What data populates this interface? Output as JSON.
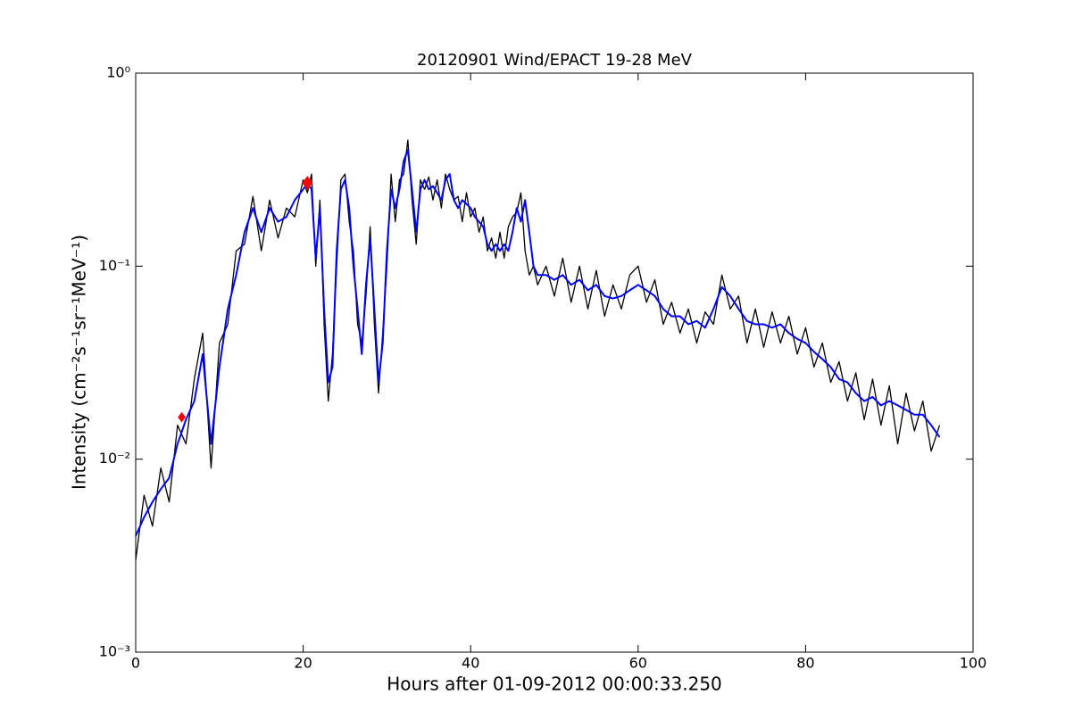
{
  "chart_data": {
    "type": "line",
    "title": "20120901 Wind/EPACT 19-28 MeV",
    "xlabel": "Hours after 01-09-2012 00:00:33.250",
    "ylabel": "Intensity (cm⁻²s⁻¹sr⁻¹MeV⁻¹)",
    "xlim": [
      0,
      100
    ],
    "xticks": [
      0,
      20,
      40,
      60,
      80,
      100
    ],
    "ylim": [
      0.001,
      1
    ],
    "yscale": "log",
    "yticks": [
      {
        "value": 0.001,
        "label": "10⁻³"
      },
      {
        "value": 0.01,
        "label": "10⁻²"
      },
      {
        "value": 0.1,
        "label": "10⁻¹"
      },
      {
        "value": 1,
        "label": "10⁰"
      }
    ],
    "x": [
      0,
      1,
      2,
      3,
      4,
      5,
      6,
      7,
      8,
      9,
      10,
      11,
      12,
      13,
      14,
      15,
      16,
      17,
      18,
      19,
      20,
      20.5,
      21,
      21.5,
      22,
      22.5,
      23,
      23.5,
      24,
      24.5,
      25,
      25.5,
      26,
      26.5,
      27,
      27.5,
      28,
      28.5,
      29,
      29.5,
      30,
      30.5,
      31,
      31.5,
      32,
      32.5,
      33,
      33.5,
      34,
      34.5,
      35,
      35.5,
      36,
      36.5,
      37,
      37.5,
      38,
      38.5,
      39,
      39.5,
      40,
      40.5,
      41,
      41.5,
      42,
      42.5,
      43,
      43.5,
      44,
      44.5,
      45,
      45.5,
      46,
      46.5,
      47,
      47.5,
      48,
      49,
      50,
      51,
      52,
      53,
      54,
      55,
      56,
      57,
      58,
      59,
      60,
      61,
      62,
      63,
      64,
      65,
      66,
      67,
      68,
      69,
      70,
      71,
      72,
      73,
      74,
      75,
      76,
      77,
      78,
      79,
      80,
      81,
      82,
      83,
      84,
      85,
      86,
      87,
      88,
      89,
      90,
      91,
      92,
      93,
      94,
      95,
      96
    ],
    "series": [
      {
        "color": "#000000",
        "values": [
          0.003,
          0.0065,
          0.0045,
          0.009,
          0.006,
          0.015,
          0.012,
          0.026,
          0.045,
          0.009,
          0.04,
          0.05,
          0.12,
          0.13,
          0.23,
          0.12,
          0.22,
          0.14,
          0.2,
          0.18,
          0.28,
          0.24,
          0.3,
          0.1,
          0.22,
          0.05,
          0.02,
          0.035,
          0.1,
          0.28,
          0.3,
          0.17,
          0.12,
          0.05,
          0.04,
          0.07,
          0.16,
          0.05,
          0.022,
          0.045,
          0.1,
          0.3,
          0.17,
          0.28,
          0.3,
          0.45,
          0.22,
          0.13,
          0.28,
          0.25,
          0.29,
          0.22,
          0.28,
          0.2,
          0.3,
          0.25,
          0.22,
          0.23,
          0.17,
          0.24,
          0.18,
          0.2,
          0.15,
          0.18,
          0.12,
          0.14,
          0.11,
          0.15,
          0.11,
          0.16,
          0.18,
          0.19,
          0.24,
          0.12,
          0.09,
          0.1,
          0.08,
          0.1,
          0.07,
          0.11,
          0.065,
          0.1,
          0.06,
          0.095,
          0.055,
          0.08,
          0.06,
          0.09,
          0.1,
          0.065,
          0.085,
          0.05,
          0.065,
          0.045,
          0.06,
          0.04,
          0.058,
          0.05,
          0.09,
          0.06,
          0.07,
          0.04,
          0.06,
          0.038,
          0.058,
          0.04,
          0.055,
          0.035,
          0.048,
          0.03,
          0.04,
          0.025,
          0.032,
          0.02,
          0.028,
          0.016,
          0.026,
          0.015,
          0.024,
          0.012,
          0.022,
          0.014,
          0.02,
          0.011,
          0.015
        ]
      },
      {
        "color": "#0000ff",
        "values": [
          0.004,
          0.005,
          0.006,
          0.007,
          0.008,
          0.012,
          0.016,
          0.02,
          0.035,
          0.012,
          0.03,
          0.06,
          0.09,
          0.15,
          0.2,
          0.15,
          0.2,
          0.17,
          0.18,
          0.22,
          0.25,
          0.27,
          0.25,
          0.11,
          0.2,
          0.06,
          0.025,
          0.03,
          0.12,
          0.25,
          0.28,
          0.2,
          0.1,
          0.06,
          0.035,
          0.08,
          0.14,
          0.06,
          0.025,
          0.04,
          0.12,
          0.25,
          0.2,
          0.25,
          0.35,
          0.4,
          0.25,
          0.15,
          0.25,
          0.28,
          0.25,
          0.26,
          0.24,
          0.22,
          0.28,
          0.3,
          0.22,
          0.2,
          0.22,
          0.21,
          0.2,
          0.18,
          0.17,
          0.16,
          0.13,
          0.12,
          0.13,
          0.12,
          0.13,
          0.12,
          0.15,
          0.2,
          0.17,
          0.22,
          0.15,
          0.1,
          0.09,
          0.09,
          0.085,
          0.09,
          0.08,
          0.085,
          0.075,
          0.08,
          0.07,
          0.068,
          0.07,
          0.075,
          0.08,
          0.075,
          0.07,
          0.06,
          0.055,
          0.055,
          0.05,
          0.052,
          0.048,
          0.06,
          0.078,
          0.07,
          0.06,
          0.052,
          0.05,
          0.05,
          0.048,
          0.05,
          0.045,
          0.042,
          0.04,
          0.036,
          0.033,
          0.03,
          0.026,
          0.025,
          0.022,
          0.02,
          0.021,
          0.019,
          0.02,
          0.019,
          0.018,
          0.017,
          0.017,
          0.015,
          0.013
        ]
      }
    ],
    "markers": {
      "color": "#ff0000",
      "x": [
        5.5,
        20.5
      ],
      "values": [
        0.0165,
        0.27
      ]
    }
  }
}
